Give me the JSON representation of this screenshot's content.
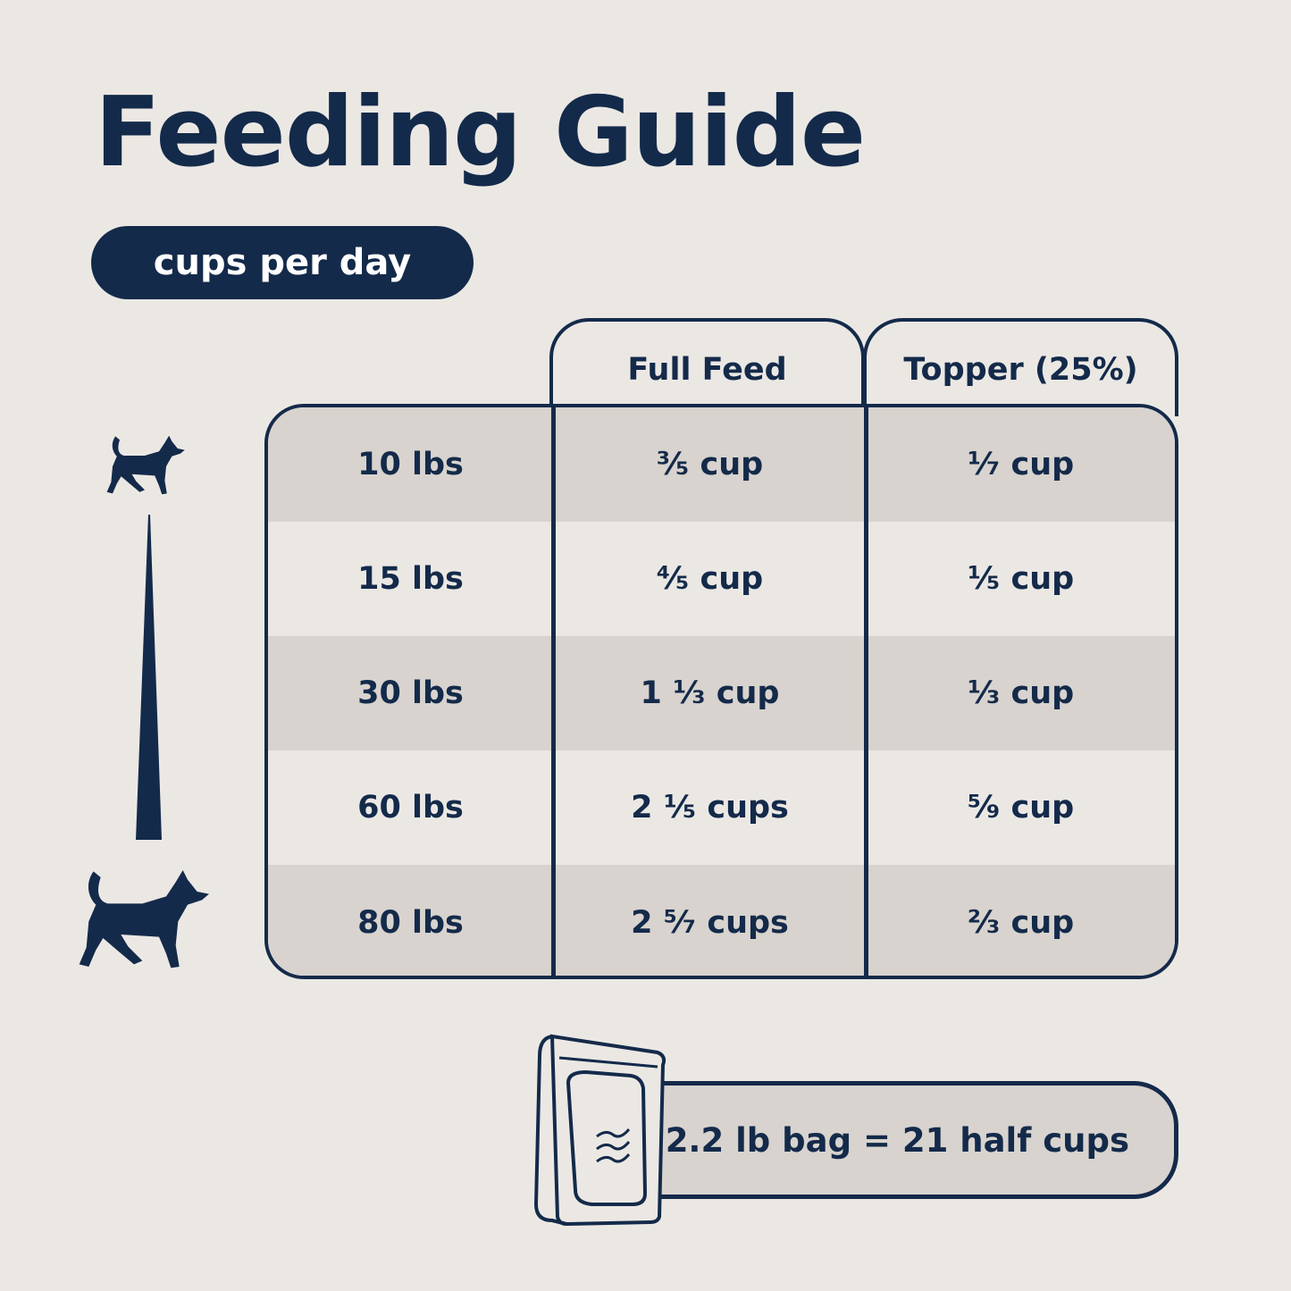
{
  "title": "Feeding Guide",
  "unit_pill": "cups per day",
  "columns": [
    "Full Feed",
    "Topper (25%)"
  ],
  "rows": [
    {
      "weight": "10 lbs",
      "full_feed": "³⁄₅ cup",
      "topper": "¹⁄₇ cup"
    },
    {
      "weight": "15 lbs",
      "full_feed": "⁴⁄₅ cup",
      "topper": "¹⁄₅ cup"
    },
    {
      "weight": "30 lbs",
      "full_feed": "1 ¹⁄₃ cup",
      "topper": "¹⁄₃ cup"
    },
    {
      "weight": "60 lbs",
      "full_feed": "2 ¹⁄₅ cups",
      "topper": "⁵⁄₉ cup"
    },
    {
      "weight": "80 lbs",
      "full_feed": "2 ⁵⁄₇ cups",
      "topper": "²⁄₃ cup"
    }
  ],
  "bag_note": "2.2 lb bag = 21 half cups",
  "colors": {
    "navy": "#142a4a",
    "background": "#ebe8e4",
    "stripe": "#d8d3ce"
  },
  "icons": [
    "small-dog-icon",
    "size-scale-wedge-icon",
    "large-dog-icon",
    "food-bag-icon"
  ]
}
